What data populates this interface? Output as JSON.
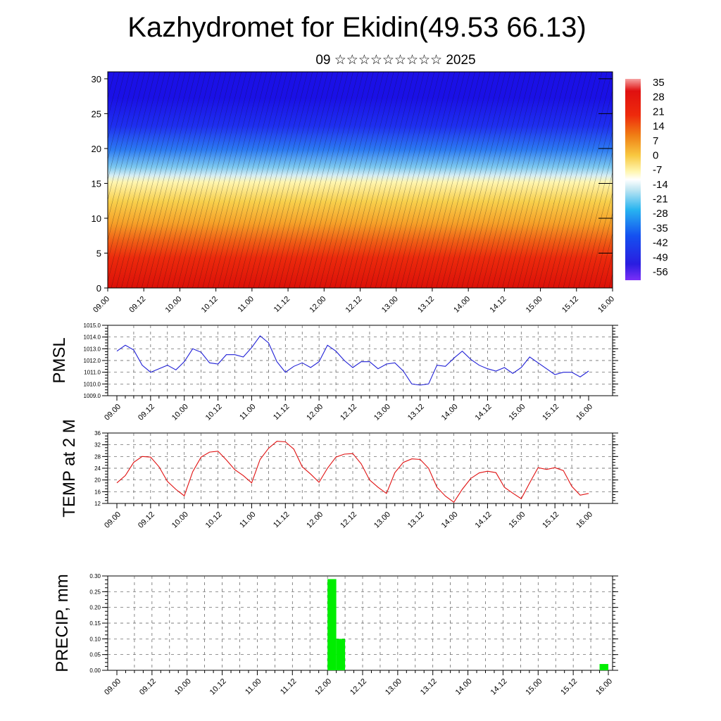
{
  "header": {
    "title": "Kazhydromet for Ekidin(49.53 66.13)",
    "subtitle": "09 ☆☆☆☆☆☆☆☆☆ 2025"
  },
  "colors": {
    "pmsl_line": "#1f1fd6",
    "temp_line": "#e01010",
    "precip_bar": "#00ee00",
    "palette_stops": [
      "#7b2ff7",
      "#2a1de0",
      "#1450f0",
      "#28b4f0",
      "#bfe6f2",
      "#fff6b0",
      "#f8c840",
      "#f07e14",
      "#ee2a0c",
      "#dd1008",
      "#f6a3a3"
    ]
  },
  "chart_data": [
    {
      "id": "cross_section",
      "type": "heatmap",
      "description_only": false,
      "y": [
        0,
        5,
        10,
        15,
        20,
        25,
        30
      ],
      "ylim": [
        0,
        31
      ],
      "xlabels": [
        "09.00",
        "09.12",
        "10.00",
        "10.12",
        "11.00",
        "11.12",
        "12.00",
        "12.12",
        "13.00",
        "13.12",
        "14.00",
        "14.12",
        "15.00",
        "15.12",
        "16.00"
      ],
      "colorbar_labels": [
        "35",
        "28",
        "21",
        "14",
        "7",
        "0",
        "-7",
        "-14",
        "-21",
        "-28",
        "-35",
        "-42",
        "-49",
        "-56"
      ]
    },
    {
      "id": "pmsl",
      "type": "line",
      "ylabel": "PMSL",
      "ylim": [
        1009.0,
        1015.0
      ],
      "yticks": [
        "1015.0",
        "1014.0",
        "1013.0",
        "1012.0",
        "1011.0",
        "1010.0",
        "1009.0"
      ],
      "xlabels": [
        "09.00",
        "09.12",
        "10.00",
        "10.12",
        "11.00",
        "11.12",
        "12.00",
        "12.12",
        "13.00",
        "13.12",
        "14.00",
        "14.12",
        "15.00",
        "15.12",
        "16.00"
      ],
      "step_hours": 3,
      "values": [
        1012.8,
        1013.3,
        1012.9,
        1011.6,
        1011.0,
        1011.3,
        1011.6,
        1011.2,
        1011.9,
        1013.0,
        1012.7,
        1011.8,
        1011.7,
        1012.5,
        1012.5,
        1012.3,
        1013.1,
        1014.1,
        1013.5,
        1011.9,
        1011.0,
        1011.5,
        1011.8,
        1011.4,
        1011.9,
        1013.3,
        1012.8,
        1012.0,
        1011.4,
        1011.9,
        1011.9,
        1011.3,
        1011.7,
        1011.8,
        1011.1,
        1010.0,
        1009.9,
        1010.0,
        1011.6,
        1011.5,
        1012.2,
        1012.8,
        1012.1,
        1011.6,
        1011.3,
        1011.1,
        1011.4,
        1010.9,
        1011.4,
        1012.3,
        1011.8,
        1011.3,
        1010.8,
        1011.0,
        1011.0,
        1010.6,
        1011.1
      ]
    },
    {
      "id": "temp",
      "type": "line",
      "ylabel": "TEMP at 2 M",
      "ylim": [
        12,
        36
      ],
      "yticks": [
        "36",
        "32",
        "28",
        "24",
        "20",
        "16",
        "12"
      ],
      "xlabels": [
        "09.00",
        "09.12",
        "10.00",
        "10.12",
        "11.00",
        "11.12",
        "12.00",
        "12.12",
        "13.00",
        "13.12",
        "14.00",
        "14.12",
        "15.00",
        "15.12",
        "16.00"
      ],
      "step_hours": 3,
      "values": [
        19.0,
        21.5,
        26.0,
        28.0,
        27.8,
        24.5,
        19.5,
        16.8,
        14.6,
        22.8,
        27.8,
        29.5,
        29.8,
        26.8,
        23.5,
        21.5,
        19.0,
        27.0,
        30.8,
        33.2,
        33.0,
        30.5,
        24.5,
        22.0,
        19.2,
        24.0,
        27.8,
        28.8,
        29.0,
        25.5,
        20.0,
        17.5,
        15.4,
        22.5,
        26.0,
        27.2,
        27.0,
        24.0,
        17.5,
        14.5,
        12.4,
        16.8,
        20.5,
        22.4,
        23.0,
        22.5,
        17.5,
        15.5,
        13.6,
        19.0,
        24.2,
        23.6,
        24.2,
        23.2,
        17.8,
        14.8,
        15.4
      ]
    },
    {
      "id": "precip",
      "type": "bar",
      "ylabel": "PRECIP, mm",
      "ylim": [
        0,
        0.3
      ],
      "yticks": [
        "0.30",
        "0.25",
        "0.20",
        "0.15",
        "0.10",
        "0.05",
        "0.00"
      ],
      "xlabels": [
        "09.00",
        "09.12",
        "10.00",
        "10.12",
        "11.00",
        "11.12",
        "12.00",
        "12.12",
        "13.00",
        "13.12",
        "14.00",
        "14.12",
        "15.00",
        "15.12",
        "16.00"
      ],
      "bars": [
        {
          "start_hour": 72,
          "end_hour": 75,
          "value": 0.29
        },
        {
          "start_hour": 75,
          "end_hour": 78,
          "value": 0.1
        },
        {
          "start_hour": 165,
          "end_hour": 168,
          "value": 0.02
        }
      ]
    }
  ]
}
